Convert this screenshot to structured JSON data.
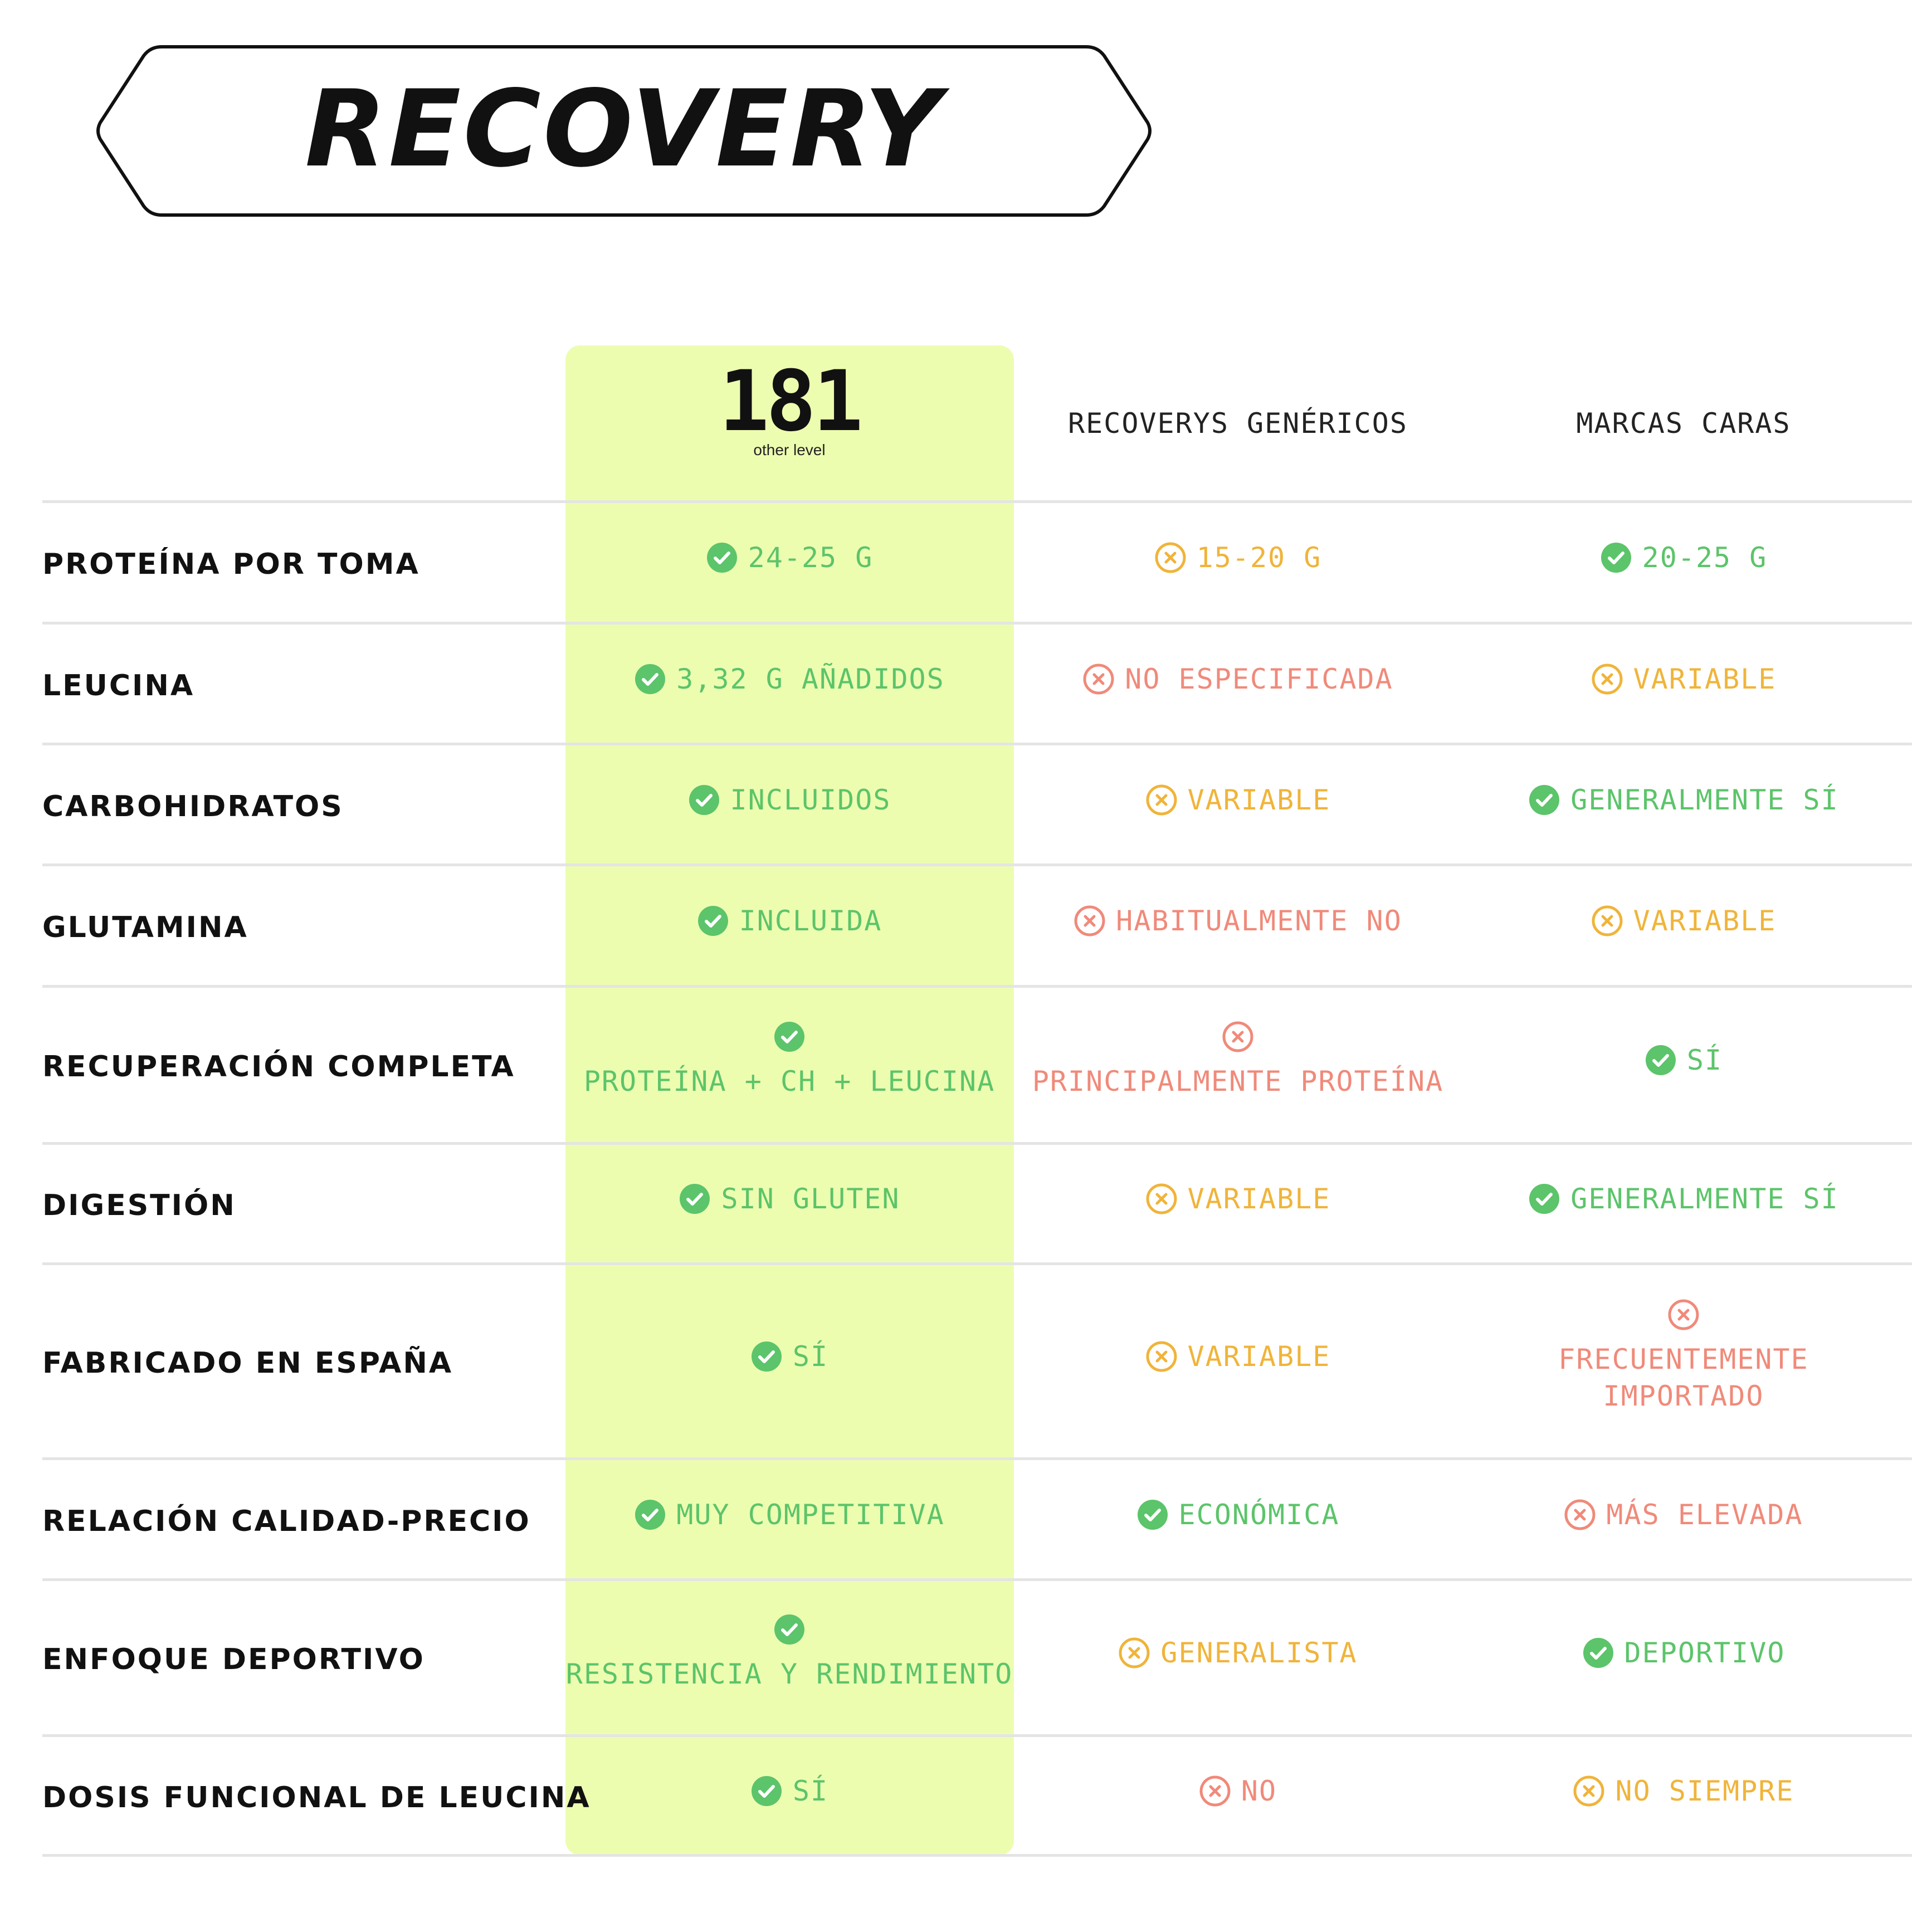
{
  "title": "RECOVERY",
  "colors": {
    "highlight": "#edfdb0",
    "good": "#5cc46a",
    "warn": "#f0b43a",
    "bad": "#f08a7a",
    "text": "#111111"
  },
  "columns": {
    "brand": {
      "logo_mark": "181",
      "logo_sub": "other level"
    },
    "generic": "RECOVERYS GENÉRICOS",
    "premium": "MARCAS CARAS"
  },
  "rows": [
    {
      "label": "PROTEÍNA POR TOMA",
      "cells": [
        {
          "status": "good",
          "icon": "check-icon",
          "text": "24-25 G"
        },
        {
          "status": "warn",
          "icon": "x-circle-icon",
          "text": "15-20 G"
        },
        {
          "status": "good",
          "icon": "check-icon",
          "text": "20-25 G"
        }
      ]
    },
    {
      "label": "LEUCINA",
      "cells": [
        {
          "status": "good",
          "icon": "check-icon",
          "text": "3,32 G AÑADIDOS"
        },
        {
          "status": "bad",
          "icon": "x-circle-icon",
          "text": "NO ESPECIFICADA"
        },
        {
          "status": "warn",
          "icon": "x-circle-icon",
          "text": "VARIABLE"
        }
      ]
    },
    {
      "label": "CARBOHIDRATOS",
      "cells": [
        {
          "status": "good",
          "icon": "check-icon",
          "text": "INCLUIDOS"
        },
        {
          "status": "warn",
          "icon": "x-circle-icon",
          "text": "VARIABLE"
        },
        {
          "status": "good",
          "icon": "check-icon",
          "text": "GENERALMENTE SÍ"
        }
      ]
    },
    {
      "label": "GLUTAMINA",
      "cells": [
        {
          "status": "good",
          "icon": "check-icon",
          "text": "INCLUIDA"
        },
        {
          "status": "bad",
          "icon": "x-circle-icon",
          "text": "HABITUALMENTE NO"
        },
        {
          "status": "warn",
          "icon": "x-circle-icon",
          "text": "VARIABLE"
        }
      ]
    },
    {
      "label": "RECUPERACIÓN COMPLETA",
      "cells": [
        {
          "status": "good",
          "icon": "check-icon",
          "text": "PROTEÍNA + CH + LEUCINA",
          "stacked": true
        },
        {
          "status": "bad",
          "icon": "x-circle-icon",
          "text": "PRINCIPALMENTE PROTEÍNA",
          "stacked": true
        },
        {
          "status": "good",
          "icon": "check-icon",
          "text": "SÍ"
        }
      ]
    },
    {
      "label": "DIGESTIÓN",
      "cells": [
        {
          "status": "good",
          "icon": "check-icon",
          "text": "SIN GLUTEN"
        },
        {
          "status": "warn",
          "icon": "x-circle-icon",
          "text": "VARIABLE"
        },
        {
          "status": "good",
          "icon": "check-icon",
          "text": "GENERALMENTE SÍ"
        }
      ]
    },
    {
      "label": "FABRICADO EN ESPAÑA",
      "cells": [
        {
          "status": "good",
          "icon": "check-icon",
          "text": "SÍ"
        },
        {
          "status": "warn",
          "icon": "x-circle-icon",
          "text": "VARIABLE"
        },
        {
          "status": "bad",
          "icon": "x-circle-icon",
          "text": "FRECUENTEMENTE IMPORTADO",
          "stacked": true,
          "lines": [
            "FRECUENTEMENTE",
            "IMPORTADO"
          ]
        }
      ]
    },
    {
      "label": "RELACIÓN CALIDAD-PRECIO",
      "cells": [
        {
          "status": "good",
          "icon": "check-icon",
          "text": "MUY COMPETITIVA"
        },
        {
          "status": "good",
          "icon": "check-icon",
          "text": "ECONÓMICA"
        },
        {
          "status": "bad",
          "icon": "x-circle-icon",
          "text": "MÁS ELEVADA"
        }
      ]
    },
    {
      "label": "ENFOQUE DEPORTIVO",
      "cells": [
        {
          "status": "good",
          "icon": "check-icon",
          "text": "RESISTENCIA Y RENDIMIENTO",
          "stacked": true
        },
        {
          "status": "warn",
          "icon": "x-circle-icon",
          "text": "GENERALISTA"
        },
        {
          "status": "good",
          "icon": "check-icon",
          "text": "DEPORTIVO"
        }
      ]
    },
    {
      "label": "DOSIS FUNCIONAL DE LEUCINA",
      "cells": [
        {
          "status": "good",
          "icon": "check-icon",
          "text": "SÍ"
        },
        {
          "status": "bad",
          "icon": "x-circle-icon",
          "text": "NO"
        },
        {
          "status": "warn",
          "icon": "x-circle-icon",
          "text": "NO SIEMPRE"
        }
      ]
    }
  ]
}
